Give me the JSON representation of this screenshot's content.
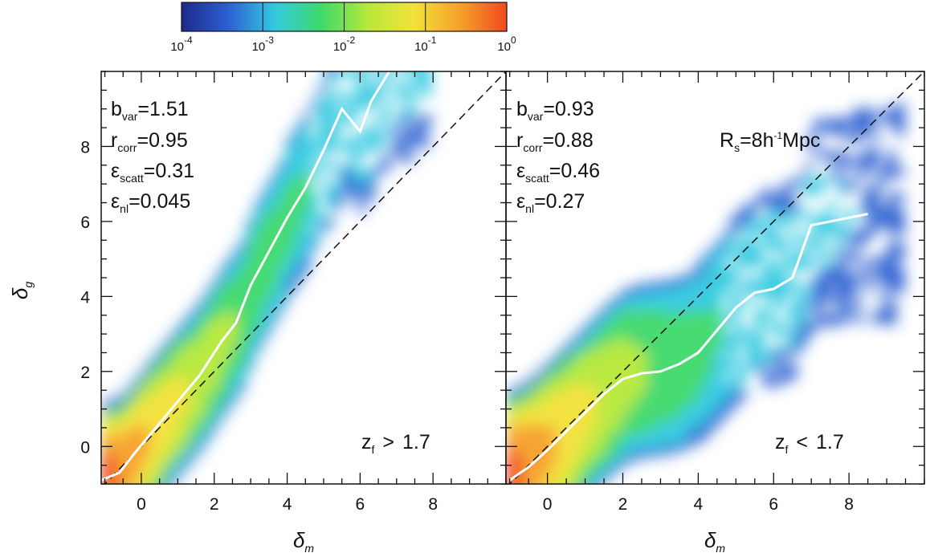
{
  "chart_data": [
    {
      "type": "heatmap",
      "panel": "left",
      "xlabel": "δ_m",
      "ylabel": "δ_g",
      "xlim": [
        -1.1,
        10
      ],
      "ylim": [
        -1.0,
        10
      ],
      "x_ticks": [
        0,
        2,
        4,
        6,
        8
      ],
      "y_ticks": [
        0,
        2,
        4,
        6,
        8
      ],
      "annotations": {
        "b_var": "1.51",
        "r_corr": "0.95",
        "eps_scatt": "0.31",
        "eps_nl": "0.045",
        "redshift_cut": "z_f > 1.7"
      },
      "dashed_line": {
        "label": "one-to-one",
        "slope": 1.0,
        "intercept": 0.0
      },
      "mean_relation": {
        "x": [
          -1.1,
          -0.6,
          -0.2,
          0.4,
          1.0,
          1.6,
          2.2,
          2.6,
          3.0,
          3.5,
          4.0,
          4.5,
          5.0,
          5.5,
          6.0,
          6.3,
          6.8
        ],
        "y": [
          -0.9,
          -0.7,
          -0.2,
          0.5,
          1.2,
          1.9,
          2.8,
          3.3,
          4.3,
          5.2,
          6.1,
          6.9,
          7.9,
          9.0,
          8.4,
          9.2,
          10.0
        ]
      },
      "density_ridge": {
        "x_start": -1.1,
        "x_end": 5.0,
        "slope": 1.51,
        "scatter": 0.31
      }
    },
    {
      "type": "heatmap",
      "panel": "right",
      "xlabel": "δ_m",
      "ylabel": "δ_g",
      "xlim": [
        -1.1,
        10
      ],
      "ylim": [
        -1.0,
        10
      ],
      "x_ticks": [
        0,
        2,
        4,
        6,
        8
      ],
      "y_ticks": [
        0,
        2,
        4,
        6,
        8
      ],
      "annotations": {
        "b_var": "0.93",
        "r_corr": "0.88",
        "eps_scatt": "0.46",
        "eps_nl": "0.27",
        "smoothing": "R_s = 8h⁻¹Mpc",
        "redshift_cut": "z_f < 1.7"
      },
      "dashed_line": {
        "label": "one-to-one",
        "slope": 1.0,
        "intercept": 0.0
      },
      "mean_relation": {
        "x": [
          -1.0,
          -0.5,
          0.0,
          0.5,
          1.0,
          1.5,
          2.0,
          2.5,
          3.0,
          3.5,
          4.0,
          4.5,
          5.0,
          5.5,
          6.0,
          6.5,
          7.0,
          7.5,
          8.0,
          8.5
        ],
        "y": [
          -0.9,
          -0.55,
          -0.1,
          0.4,
          0.9,
          1.4,
          1.8,
          1.95,
          2.0,
          2.2,
          2.5,
          3.1,
          3.7,
          4.1,
          4.2,
          4.5,
          5.9,
          6.0,
          6.1,
          6.2
        ]
      },
      "density_ridge": {
        "x_start": -1.0,
        "x_end": 6.5,
        "slope": 0.93,
        "scatter": 0.46
      }
    }
  ],
  "colorbar": {
    "type": "log",
    "range": [
      0.0001,
      1
    ],
    "tick_exponents": [
      "-4",
      "-3",
      "-2",
      "-1",
      "0"
    ],
    "tick_base": "10",
    "colors": [
      "#1d2a8a",
      "#2c5fd1",
      "#33c9e0",
      "#3ed96b",
      "#b6e83a",
      "#f2e23a",
      "#f5a02b",
      "#f04a1f"
    ]
  },
  "labels": {
    "bvar_sym": "b",
    "bvar_sub": "var",
    "rcorr_sym": "r",
    "rcorr_sub": "corr",
    "epsscatt_sym": "ε",
    "epsscatt_sub": "scatt",
    "epsnl_sym": "ε",
    "epsnl_sub": "nl",
    "z_sym": "z",
    "z_sub": "f",
    "gt": ">",
    "lt": "<",
    "z_value": "1.7",
    "rs_sym": "R",
    "rs_sub": "s",
    "rs_value": "8h",
    "rs_exp": "-1",
    "rs_unit": "Mpc",
    "delta": "δ",
    "m_sub": "m",
    "g_sub": "g",
    "equals": "="
  }
}
